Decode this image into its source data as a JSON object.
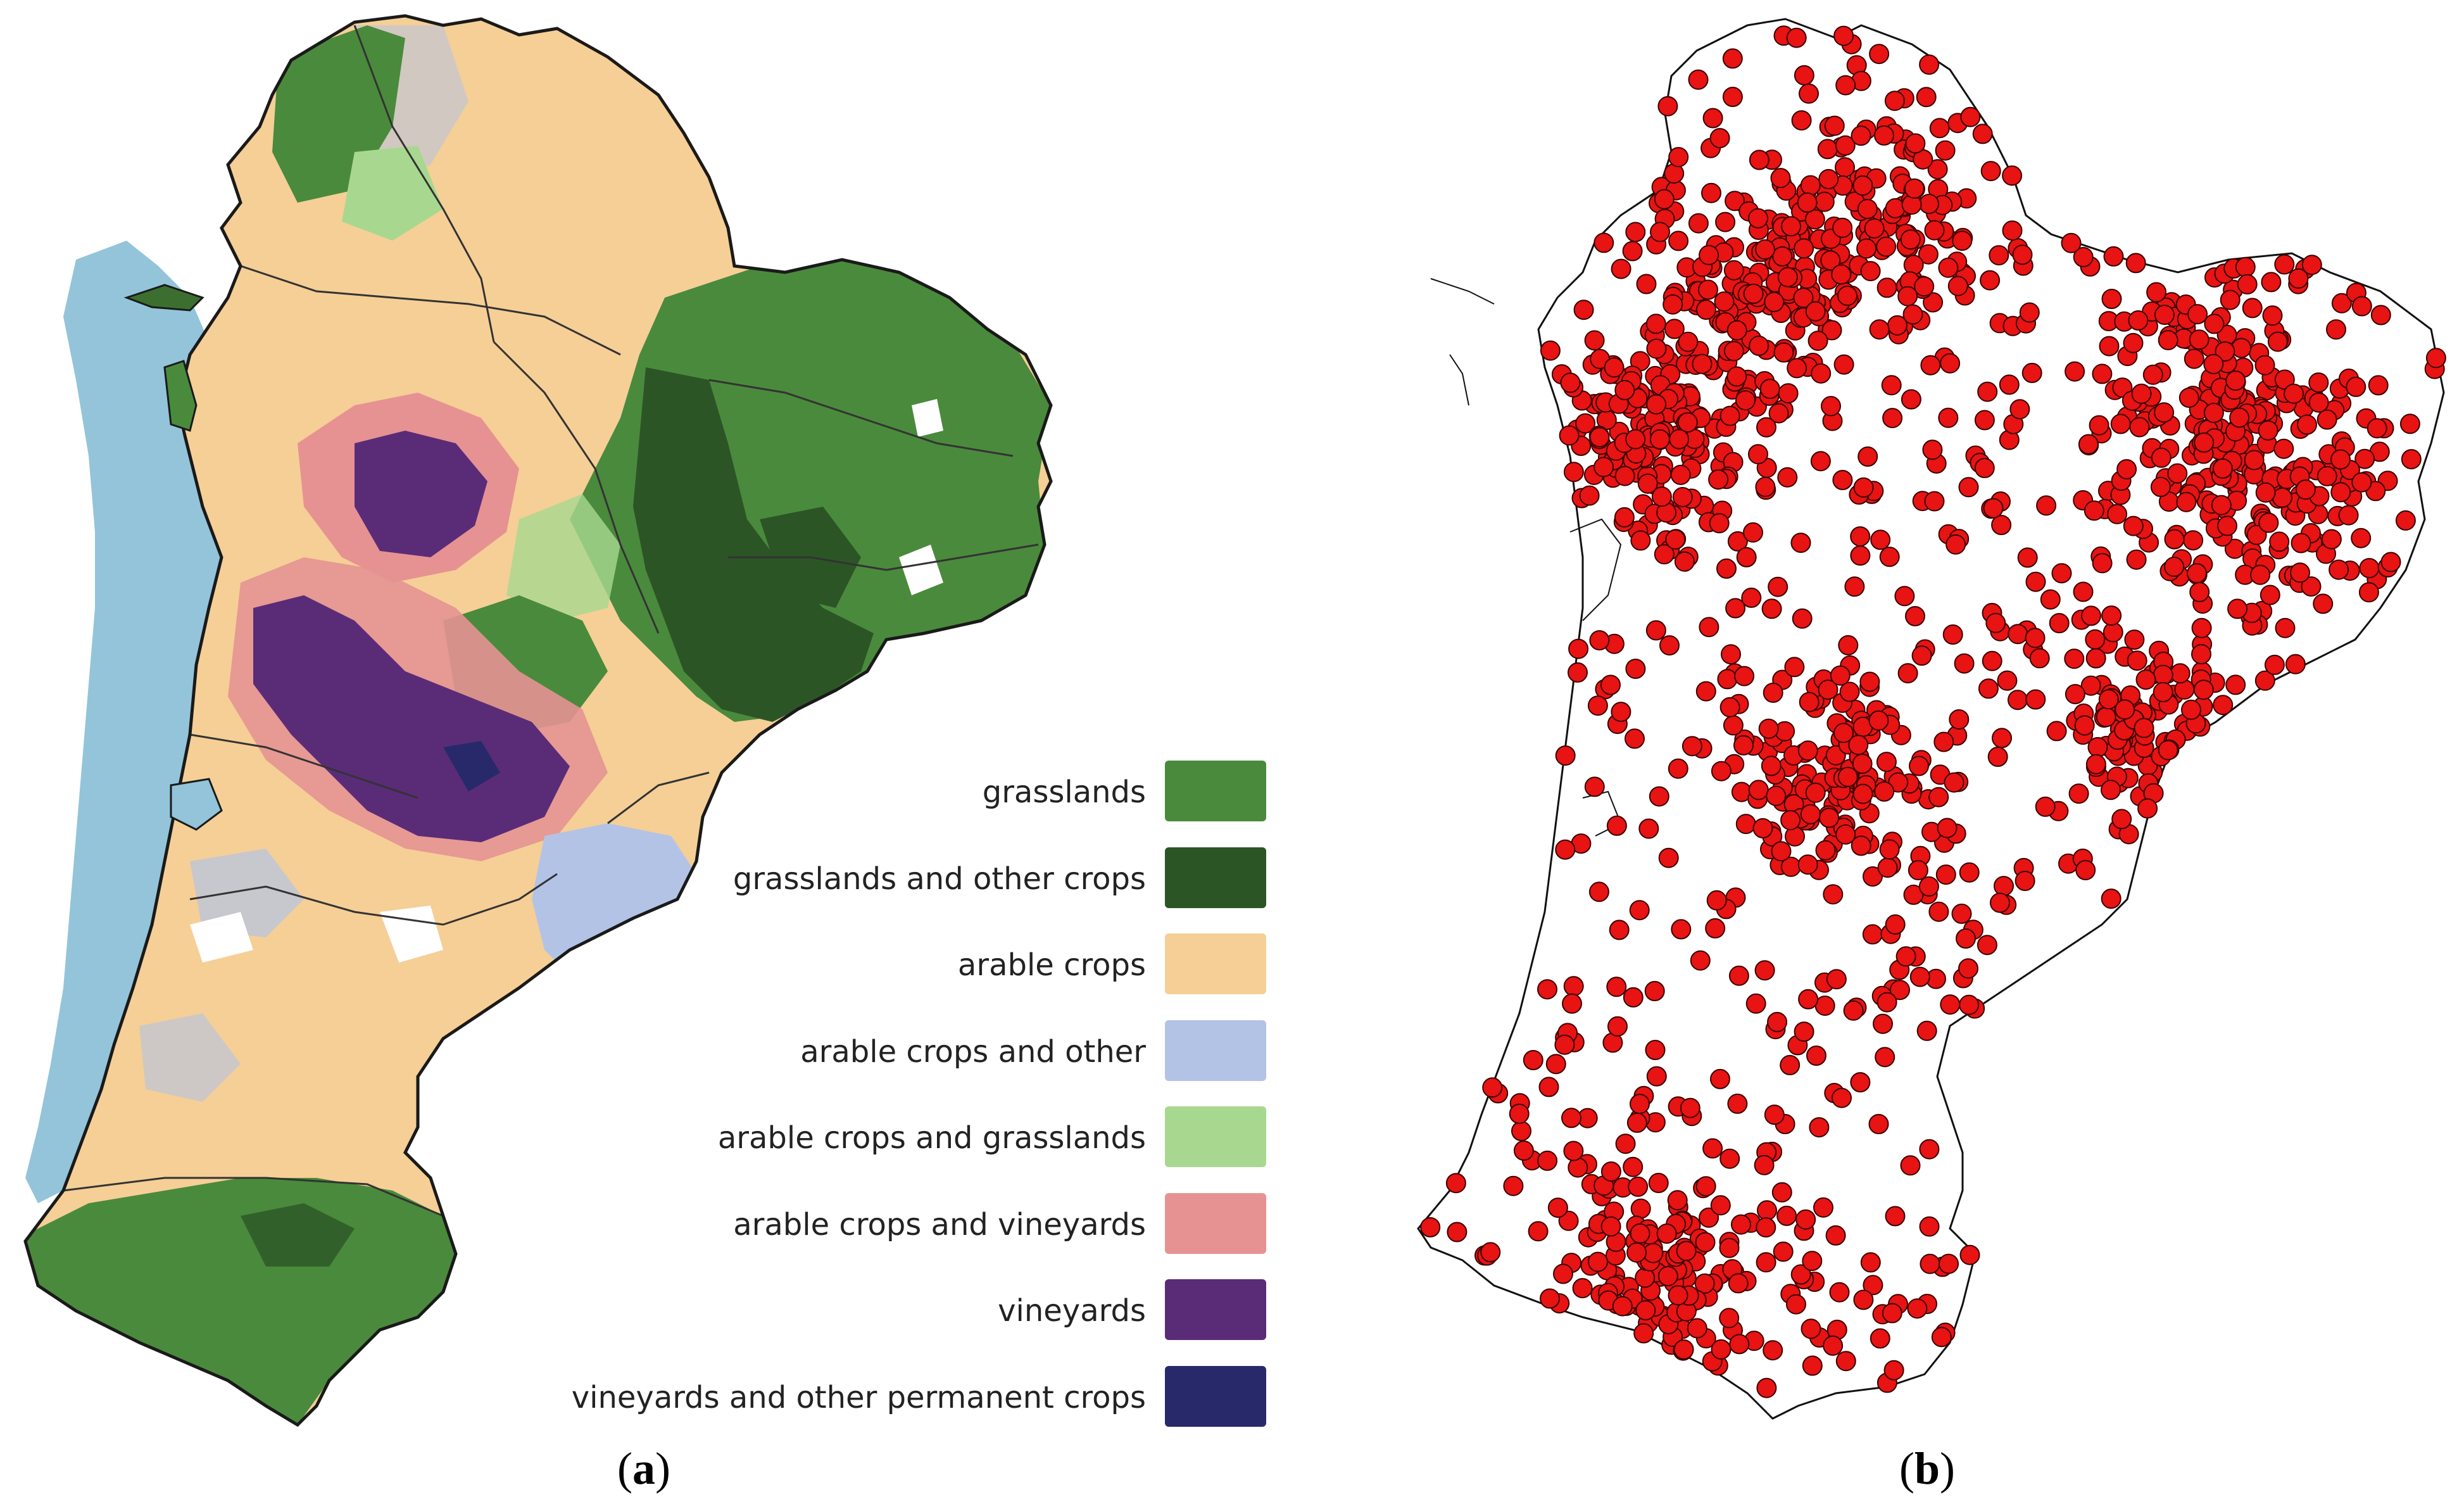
{
  "panel_a": {
    "caption": "a",
    "legend": [
      {
        "label": "grasslands",
        "color": "#4a8a3c"
      },
      {
        "label": "grasslands and other crops",
        "color": "#2c5526"
      },
      {
        "label": "arable crops",
        "color": "#f5cf96"
      },
      {
        "label": "arable crops and other",
        "color": "#b3c3e6"
      },
      {
        "label": "arable crops and grasslands",
        "color": "#a8d890"
      },
      {
        "label": "arable crops and vineyards",
        "color": "#e69292"
      },
      {
        "label": "vineyards",
        "color": "#5a2c78"
      },
      {
        "label": "vineyards and other permanent crops",
        "color": "#27296a"
      }
    ],
    "sea_color": "#93c4da",
    "border_color": "#1a1a1a"
  },
  "panel_b": {
    "caption": "b",
    "point_color": "#e81313",
    "point_stroke": "#3a0000"
  }
}
